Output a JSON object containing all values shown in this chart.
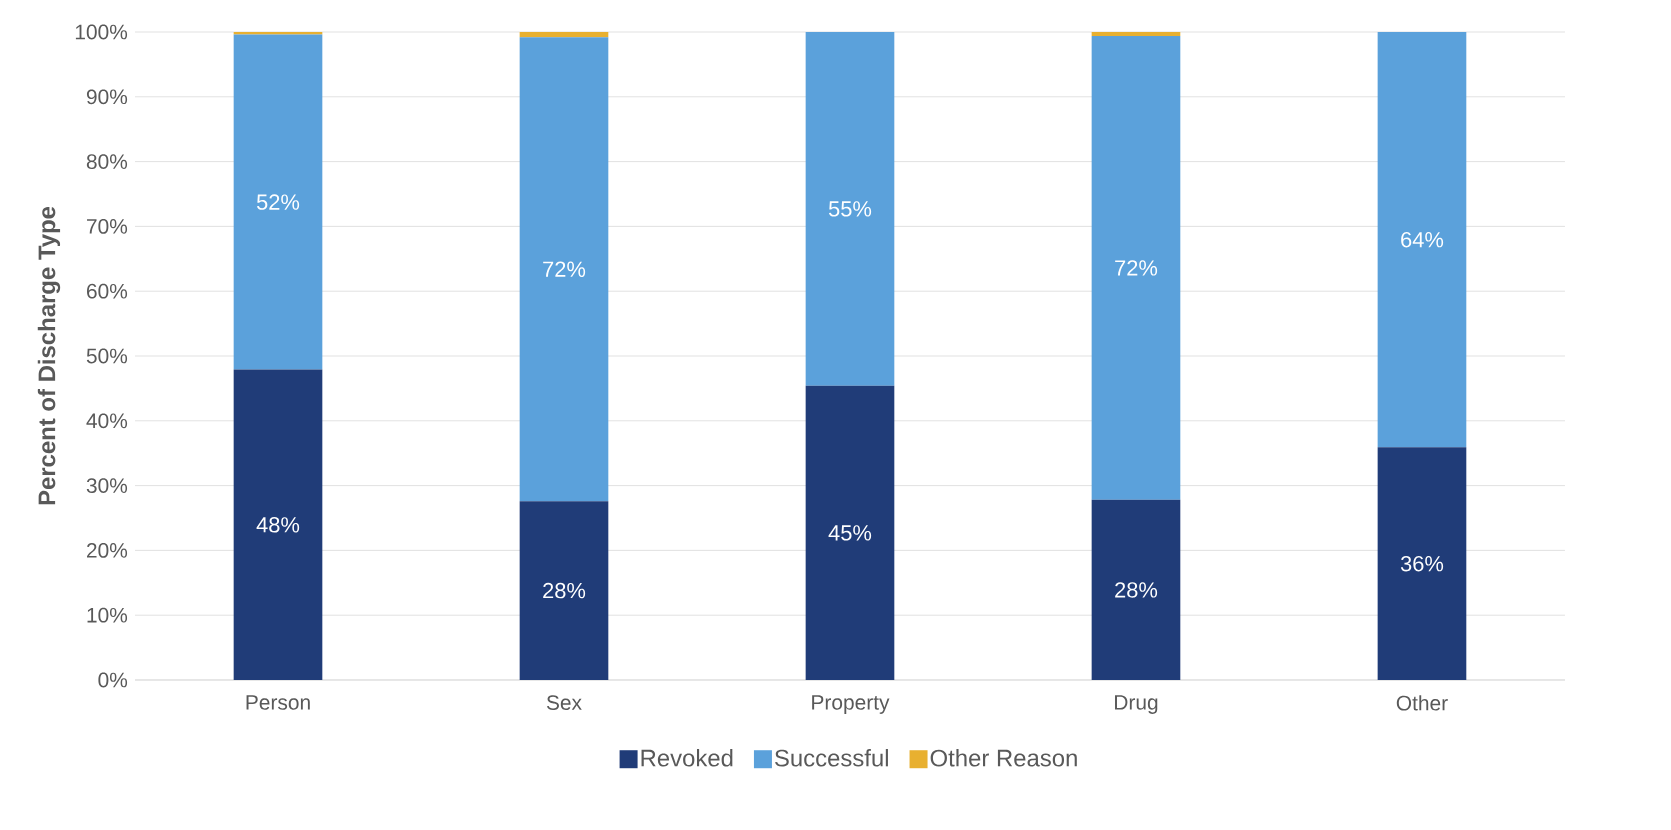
{
  "chart_data": {
    "type": "bar",
    "stacked": true,
    "ylabel": "Percent of Discharge Type",
    "categories": [
      "Person",
      "Sex",
      "Property",
      "Drug",
      "Other"
    ],
    "series": [
      {
        "name": "Revoked",
        "color": "#203c78",
        "values": [
          47.9,
          27.6,
          45.4,
          27.8,
          35.9
        ],
        "value_labels": [
          "48%",
          "28%",
          "45%",
          "28%",
          "36%"
        ]
      },
      {
        "name": "Successful",
        "color": "#5ba1db",
        "values": [
          51.7,
          71.6,
          54.6,
          71.6,
          64.1
        ],
        "value_labels": [
          "52%",
          "72%",
          "55%",
          "72%",
          "64%"
        ]
      },
      {
        "name": "Other Reason",
        "color": "#e8b030",
        "values": [
          0.4,
          0.8,
          0,
          0.6,
          0
        ]
      }
    ],
    "ylim": [
      0,
      100
    ],
    "yticks": [
      {
        "value": 0,
        "label": "0%"
      },
      {
        "value": 10,
        "label": "10%"
      },
      {
        "value": 20,
        "label": "20%"
      },
      {
        "value": 30,
        "label": "30%"
      },
      {
        "value": 40,
        "label": "40%"
      },
      {
        "value": 50,
        "label": "50%"
      },
      {
        "value": 60,
        "label": "60%"
      },
      {
        "value": 70,
        "label": "70%"
      },
      {
        "value": 80,
        "label": "80%"
      },
      {
        "value": 90,
        "label": "90%"
      },
      {
        "value": 100,
        "label": "100%"
      }
    ],
    "grid": "y",
    "legend": "bottom"
  }
}
